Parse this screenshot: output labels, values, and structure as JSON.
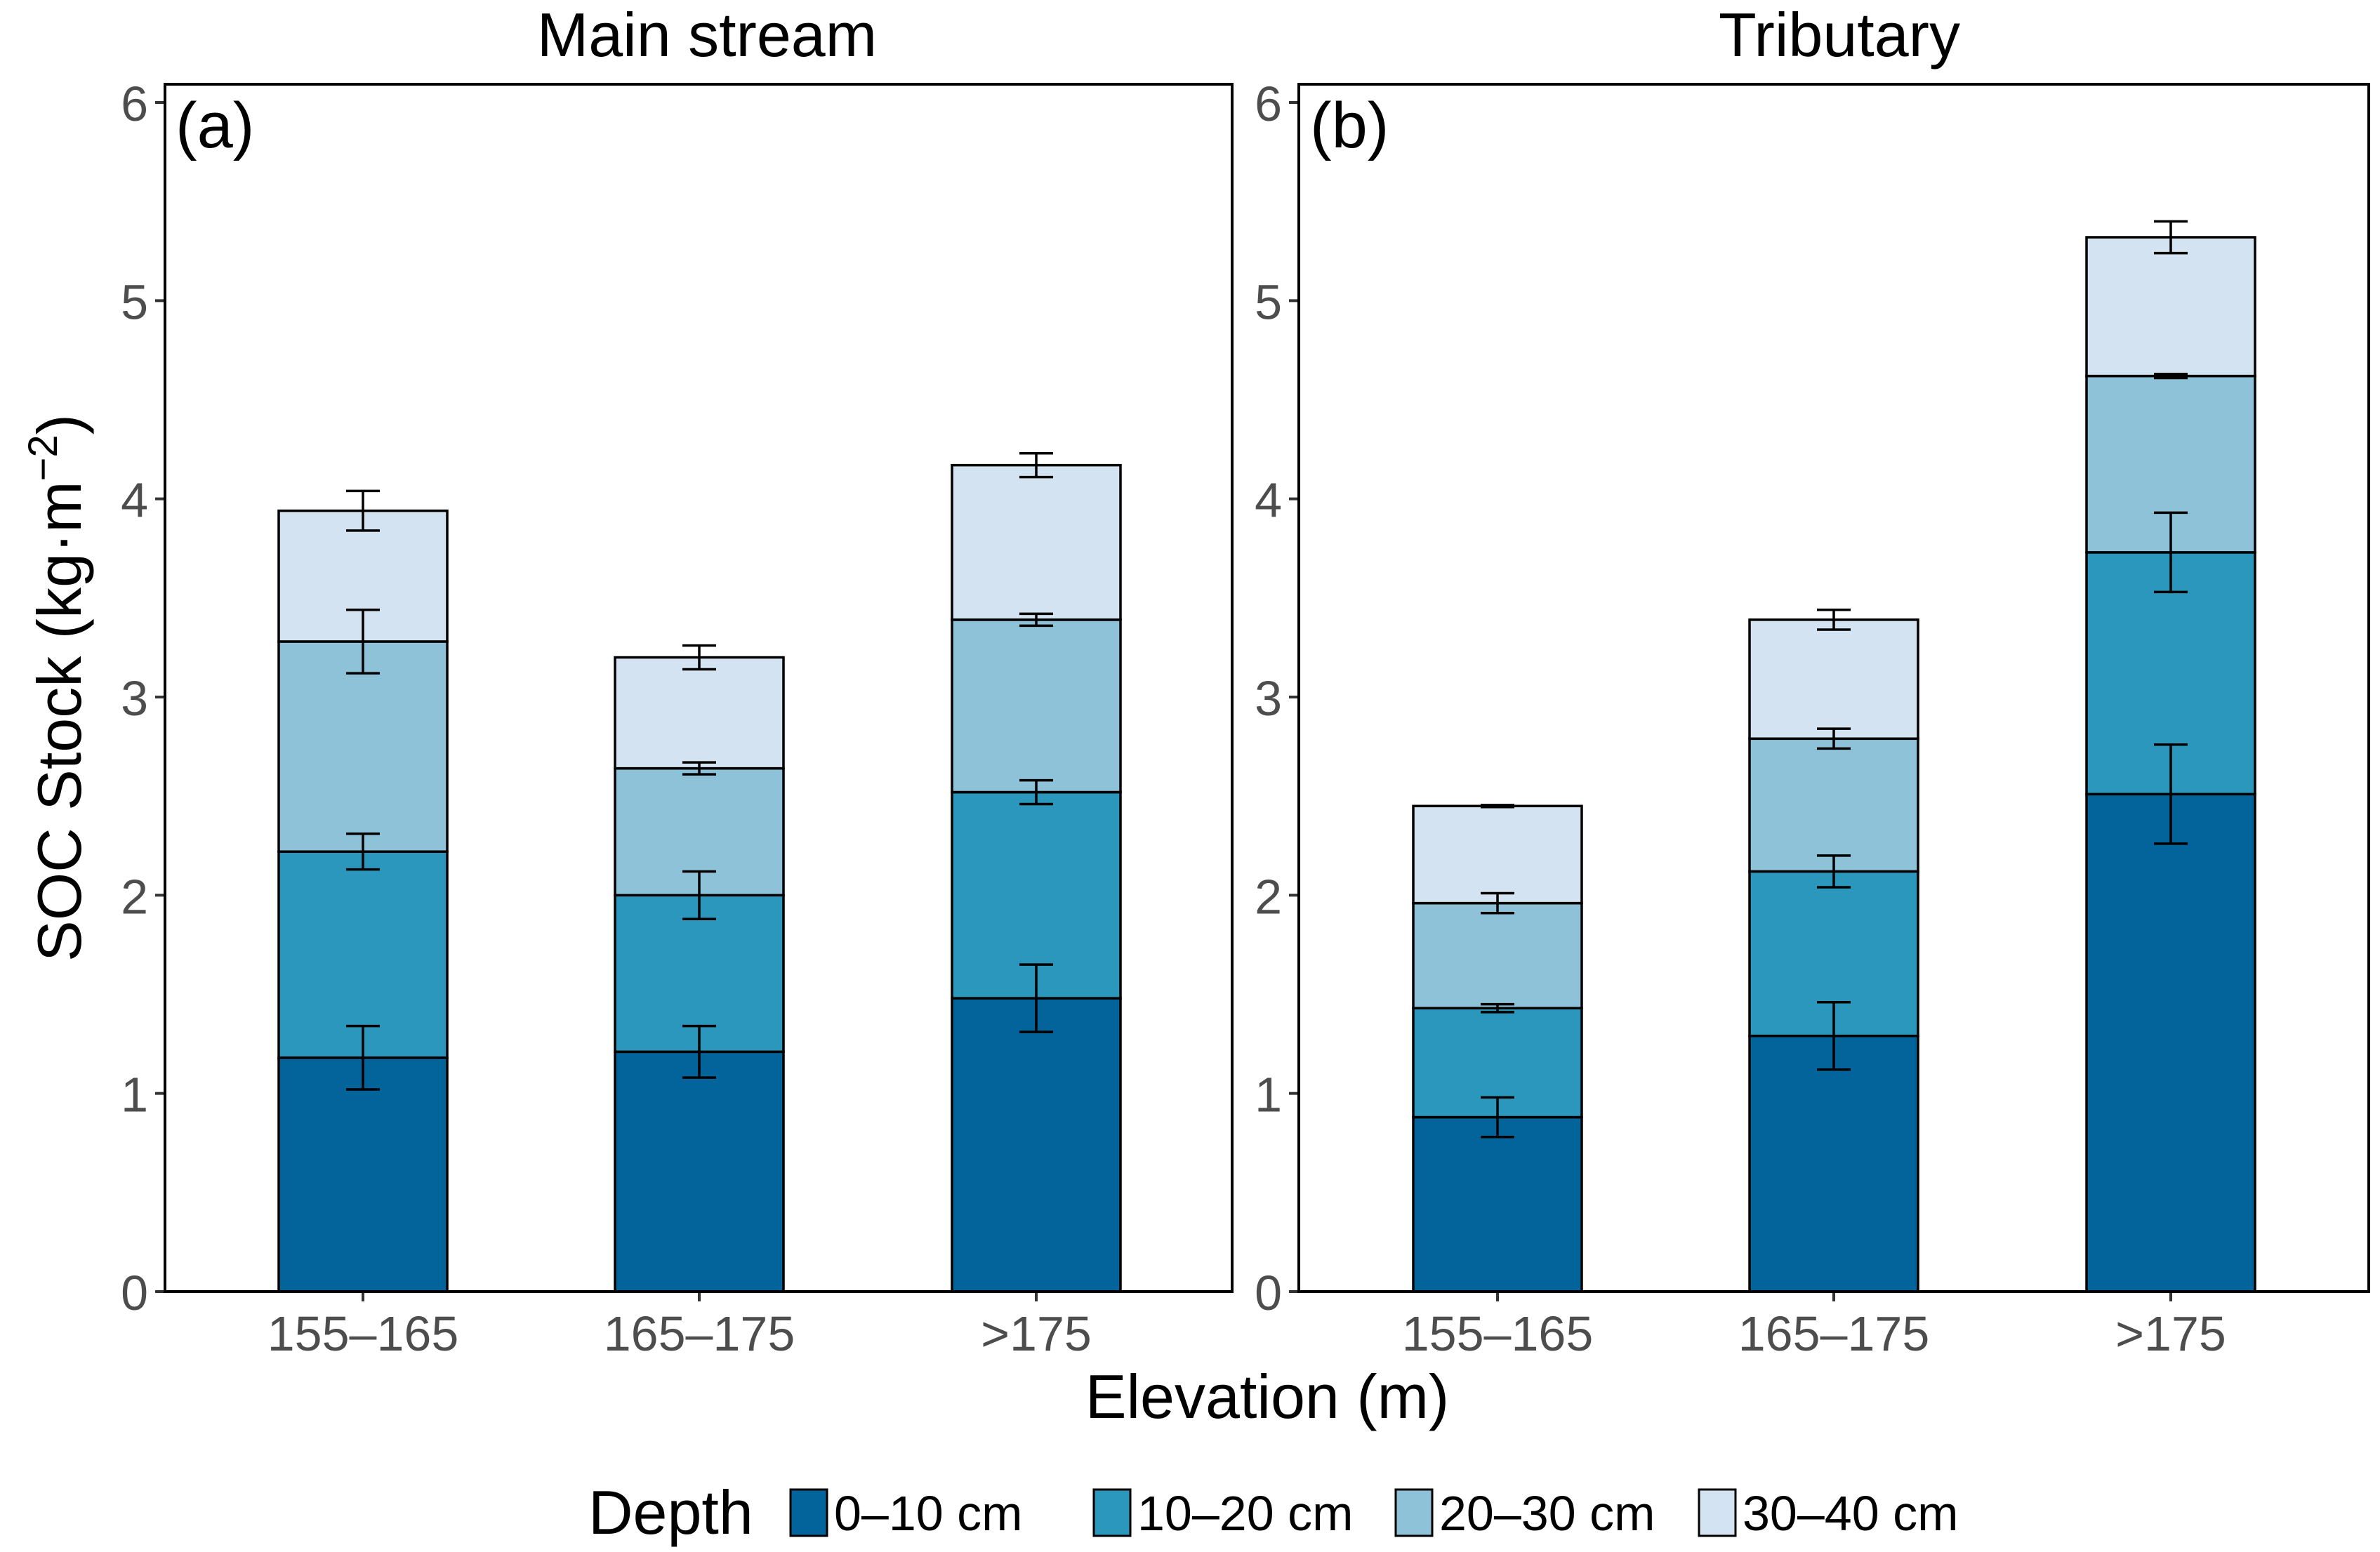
{
  "chart_data": {
    "type": "bar",
    "stacked": true,
    "ylabel": "SOC Stock (kg·m⁻²)",
    "ylabel_base": "SOC Stock (kg·m",
    "ylabel_sup": "−2",
    "ylabel_close": ")",
    "xlabel": "Elevation (m)",
    "ylim": [
      0,
      6
    ],
    "yticks": [
      "0",
      "1",
      "2",
      "3",
      "4",
      "5",
      "6"
    ],
    "legend": {
      "title": "Depth",
      "position": "bottom",
      "entries": [
        {
          "label": "0–10 cm",
          "color": "#02649b"
        },
        {
          "label": "10–20 cm",
          "color": "#2b97bd"
        },
        {
          "label": "20–30 cm",
          "color": "#8dc2d8"
        },
        {
          "label": "30–40 cm",
          "color": "#d3e3f1"
        }
      ]
    },
    "panels": [
      {
        "title": "Main stream",
        "tag": "(a)",
        "categories": [
          "155–165",
          "165–175",
          ">175"
        ],
        "series": [
          {
            "name": "0–10 cm",
            "values": [
              1.18,
              1.21,
              1.48
            ],
            "errors": [
              0.16,
              0.13,
              0.17
            ]
          },
          {
            "name": "10–20 cm",
            "values": [
              1.04,
              0.79,
              1.04
            ],
            "errors": [
              0.09,
              0.12,
              0.06
            ]
          },
          {
            "name": "20–30 cm",
            "values": [
              1.06,
              0.64,
              0.87
            ],
            "errors": [
              0.16,
              0.03,
              0.03
            ]
          },
          {
            "name": "30–40 cm",
            "values": [
              0.66,
              0.56,
              0.78
            ],
            "errors": [
              0.1,
              0.06,
              0.06
            ]
          }
        ]
      },
      {
        "title": "Tributary",
        "tag": "(b)",
        "categories": [
          "155–165",
          "165–175",
          ">175"
        ],
        "series": [
          {
            "name": "0–10 cm",
            "values": [
              0.88,
              1.29,
              2.51
            ],
            "errors": [
              0.1,
              0.17,
              0.25
            ]
          },
          {
            "name": "10–20 cm",
            "values": [
              0.55,
              0.83,
              1.22
            ],
            "errors": [
              0.02,
              0.08,
              0.2
            ]
          },
          {
            "name": "20–30 cm",
            "values": [
              0.53,
              0.67,
              0.89
            ],
            "errors": [
              0.05,
              0.05,
              0.01
            ]
          },
          {
            "name": "30–40 cm",
            "values": [
              0.49,
              0.6,
              0.7
            ],
            "errors": [
              0.005,
              0.05,
              0.08
            ]
          }
        ]
      }
    ]
  }
}
